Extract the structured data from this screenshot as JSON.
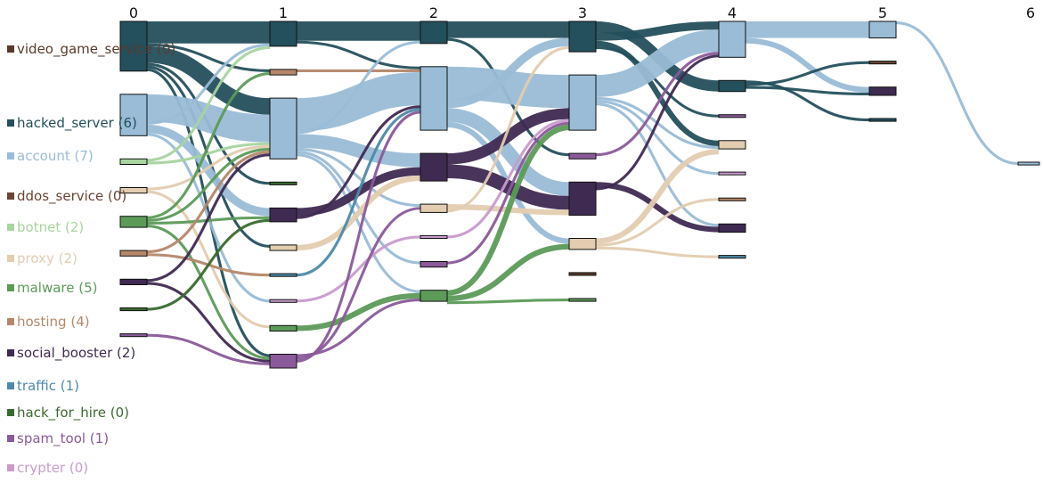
{
  "chart_data": {
    "type": "sankey",
    "steps": [
      "0",
      "1",
      "2",
      "3",
      "4",
      "5",
      "6"
    ],
    "categories": [
      {
        "key": "video_game_service",
        "color": "#5a3a2c"
      },
      {
        "key": "hacked_server",
        "color": "#244f5c"
      },
      {
        "key": "account",
        "color": "#9abcd6"
      },
      {
        "key": "ddos_service",
        "color": "#6b4434"
      },
      {
        "key": "botnet",
        "color": "#a8d4a0"
      },
      {
        "key": "proxy",
        "color": "#e3ccb0"
      },
      {
        "key": "malware",
        "color": "#5c9a58"
      },
      {
        "key": "hosting",
        "color": "#b4876a"
      },
      {
        "key": "social_booster",
        "color": "#3f2a52"
      },
      {
        "key": "traffic",
        "color": "#4e8aa8"
      },
      {
        "key": "hack_for_hire",
        "color": "#3a6a30"
      },
      {
        "key": "spam_tool",
        "color": "#8a5a9a"
      },
      {
        "key": "crypter",
        "color": "#c89bcc"
      }
    ],
    "legend": [
      {
        "label": "video_game_service (0)",
        "category": "video_game_service"
      },
      {
        "label": "hacked_server (6)",
        "category": "hacked_server"
      },
      {
        "label": "account (7)",
        "category": "account"
      },
      {
        "label": "ddos_service (0)",
        "category": "ddos_service"
      },
      {
        "label": "botnet (2)",
        "category": "botnet"
      },
      {
        "label": "proxy (2)",
        "category": "proxy"
      },
      {
        "label": "malware (5)",
        "category": "malware"
      },
      {
        "label": "hosting (4)",
        "category": "hosting"
      },
      {
        "label": "social_booster (2)",
        "category": "social_booster"
      },
      {
        "label": "traffic (1)",
        "category": "traffic"
      },
      {
        "label": "hack_for_hire (0)",
        "category": "hack_for_hire"
      },
      {
        "label": "spam_tool (1)",
        "category": "spam_tool"
      },
      {
        "label": "crypter (0)",
        "category": "crypter"
      }
    ],
    "nodes": [
      {
        "id": "s0_hacked_server",
        "step": 0,
        "category": "hacked_server",
        "value": 18
      },
      {
        "id": "s0_account",
        "step": 0,
        "category": "account",
        "value": 15
      },
      {
        "id": "s0_botnet",
        "step": 0,
        "category": "botnet",
        "value": 2
      },
      {
        "id": "s0_proxy",
        "step": 0,
        "category": "proxy",
        "value": 2
      },
      {
        "id": "s0_malware",
        "step": 0,
        "category": "malware",
        "value": 4
      },
      {
        "id": "s0_hosting",
        "step": 0,
        "category": "hosting",
        "value": 2
      },
      {
        "id": "s0_social_booster",
        "step": 0,
        "category": "social_booster",
        "value": 2
      },
      {
        "id": "s0_hack_for_hire",
        "step": 0,
        "category": "hack_for_hire",
        "value": 1
      },
      {
        "id": "s0_spam_tool",
        "step": 0,
        "category": "spam_tool",
        "value": 1
      },
      {
        "id": "s1_hacked_server",
        "step": 1,
        "category": "hacked_server",
        "value": 9
      },
      {
        "id": "s1_hosting",
        "step": 1,
        "category": "hosting",
        "value": 2
      },
      {
        "id": "s1_account",
        "step": 1,
        "category": "account",
        "value": 22
      },
      {
        "id": "s1_hack_for_hire",
        "step": 1,
        "category": "hack_for_hire",
        "value": 1
      },
      {
        "id": "s1_social_booster",
        "step": 1,
        "category": "social_booster",
        "value": 5
      },
      {
        "id": "s1_proxy",
        "step": 1,
        "category": "proxy",
        "value": 2
      },
      {
        "id": "s1_traffic",
        "step": 1,
        "category": "traffic",
        "value": 1
      },
      {
        "id": "s1_crypter",
        "step": 1,
        "category": "crypter",
        "value": 1
      },
      {
        "id": "s1_malware",
        "step": 1,
        "category": "malware",
        "value": 2
      },
      {
        "id": "s1_spam_tool",
        "step": 1,
        "category": "spam_tool",
        "value": 5
      },
      {
        "id": "s2_hacked_server",
        "step": 2,
        "category": "hacked_server",
        "value": 8
      },
      {
        "id": "s2_account",
        "step": 2,
        "category": "account",
        "value": 23
      },
      {
        "id": "s2_social_booster",
        "step": 2,
        "category": "social_booster",
        "value": 10
      },
      {
        "id": "s2_proxy",
        "step": 2,
        "category": "proxy",
        "value": 3
      },
      {
        "id": "s2_crypter",
        "step": 2,
        "category": "crypter",
        "value": 1
      },
      {
        "id": "s2_spam_tool",
        "step": 2,
        "category": "spam_tool",
        "value": 2
      },
      {
        "id": "s2_malware",
        "step": 2,
        "category": "malware",
        "value": 4
      },
      {
        "id": "s3_hacked_server",
        "step": 3,
        "category": "hacked_server",
        "value": 11
      },
      {
        "id": "s3_account",
        "step": 3,
        "category": "account",
        "value": 20
      },
      {
        "id": "s3_spam_tool",
        "step": 3,
        "category": "spam_tool",
        "value": 2
      },
      {
        "id": "s3_social_booster",
        "step": 3,
        "category": "social_booster",
        "value": 12
      },
      {
        "id": "s3_proxy",
        "step": 3,
        "category": "proxy",
        "value": 4
      },
      {
        "id": "s3_video_game_service",
        "step": 3,
        "category": "video_game_service",
        "value": 1
      },
      {
        "id": "s3_malware",
        "step": 3,
        "category": "malware",
        "value": 1
      },
      {
        "id": "s4_account",
        "step": 4,
        "category": "account",
        "value": 13
      },
      {
        "id": "s4_hacked_server",
        "step": 4,
        "category": "hacked_server",
        "value": 4
      },
      {
        "id": "s4_spam_tool",
        "step": 4,
        "category": "spam_tool",
        "value": 1
      },
      {
        "id": "s4_proxy",
        "step": 4,
        "category": "proxy",
        "value": 3
      },
      {
        "id": "s4_crypter",
        "step": 4,
        "category": "crypter",
        "value": 1
      },
      {
        "id": "s4_hosting",
        "step": 4,
        "category": "hosting",
        "value": 1
      },
      {
        "id": "s4_social_booster",
        "step": 4,
        "category": "social_booster",
        "value": 3
      },
      {
        "id": "s4_traffic",
        "step": 4,
        "category": "traffic",
        "value": 1
      },
      {
        "id": "s5_account",
        "step": 5,
        "category": "account",
        "value": 6
      },
      {
        "id": "s5_ddos_service",
        "step": 5,
        "category": "ddos_service",
        "value": 1
      },
      {
        "id": "s5_social_booster",
        "step": 5,
        "category": "social_booster",
        "value": 3
      },
      {
        "id": "s5_hacked_server",
        "step": 5,
        "category": "hacked_server",
        "value": 1
      },
      {
        "id": "s6_account",
        "step": 6,
        "category": "account",
        "value": 1
      }
    ],
    "links": [
      {
        "source": "s0_hacked_server",
        "target": "s1_hacked_server",
        "value": 8
      },
      {
        "source": "s0_hacked_server",
        "target": "s1_hosting",
        "value": 1
      },
      {
        "source": "s0_hacked_server",
        "target": "s1_account",
        "value": 6
      },
      {
        "source": "s0_hacked_server",
        "target": "s1_hack_for_hire",
        "value": 1
      },
      {
        "source": "s0_hacked_server",
        "target": "s1_proxy",
        "value": 1
      },
      {
        "source": "s0_hacked_server",
        "target": "s1_spam_tool",
        "value": 1
      },
      {
        "source": "s0_account",
        "target": "s1_account",
        "value": 10
      },
      {
        "source": "s0_account",
        "target": "s1_hacked_server",
        "value": 1
      },
      {
        "source": "s0_account",
        "target": "s1_social_booster",
        "value": 3
      },
      {
        "source": "s0_account",
        "target": "s1_crypter",
        "value": 1
      },
      {
        "source": "s0_botnet",
        "target": "s1_hacked_server",
        "value": 1
      },
      {
        "source": "s0_botnet",
        "target": "s1_account",
        "value": 1
      },
      {
        "source": "s0_proxy",
        "target": "s1_account",
        "value": 1
      },
      {
        "source": "s0_proxy",
        "target": "s1_malware",
        "value": 1
      },
      {
        "source": "s0_malware",
        "target": "s1_hosting",
        "value": 1
      },
      {
        "source": "s0_malware",
        "target": "s1_account",
        "value": 1
      },
      {
        "source": "s0_malware",
        "target": "s1_social_booster",
        "value": 1
      },
      {
        "source": "s0_malware",
        "target": "s1_spam_tool",
        "value": 1
      },
      {
        "source": "s0_hosting",
        "target": "s1_account",
        "value": 1
      },
      {
        "source": "s0_hosting",
        "target": "s1_traffic",
        "value": 1
      },
      {
        "source": "s0_social_booster",
        "target": "s1_account",
        "value": 1
      },
      {
        "source": "s0_social_booster",
        "target": "s1_spam_tool",
        "value": 1
      },
      {
        "source": "s0_hack_for_hire",
        "target": "s1_social_booster",
        "value": 1
      },
      {
        "source": "s0_spam_tool",
        "target": "s1_spam_tool",
        "value": 1
      },
      {
        "source": "s1_hacked_server",
        "target": "s2_hacked_server",
        "value": 7
      },
      {
        "source": "s1_hacked_server",
        "target": "s2_account",
        "value": 1
      },
      {
        "source": "s1_hosting",
        "target": "s2_account",
        "value": 1
      },
      {
        "source": "s1_account",
        "target": "s2_account",
        "value": 12
      },
      {
        "source": "s1_account",
        "target": "s2_hacked_server",
        "value": 1
      },
      {
        "source": "s1_account",
        "target": "s2_social_booster",
        "value": 5
      },
      {
        "source": "s1_account",
        "target": "s2_proxy",
        "value": 1
      },
      {
        "source": "s1_account",
        "target": "s2_spam_tool",
        "value": 1
      },
      {
        "source": "s1_account",
        "target": "s2_malware",
        "value": 1
      },
      {
        "source": "s1_social_booster",
        "target": "s2_social_booster",
        "value": 3
      },
      {
        "source": "s1_social_booster",
        "target": "s2_account",
        "value": 1
      },
      {
        "source": "s1_proxy",
        "target": "s2_social_booster",
        "value": 2
      },
      {
        "source": "s1_traffic",
        "target": "s2_account",
        "value": 1
      },
      {
        "source": "s1_crypter",
        "target": "s2_crypter",
        "value": 1
      },
      {
        "source": "s1_malware",
        "target": "s2_malware",
        "value": 2
      },
      {
        "source": "s1_spam_tool",
        "target": "s2_malware",
        "value": 1
      },
      {
        "source": "s1_spam_tool",
        "target": "s2_proxy",
        "value": 1
      },
      {
        "source": "s1_spam_tool",
        "target": "s2_account",
        "value": 1
      },
      {
        "source": "s2_hacked_server",
        "target": "s3_hacked_server",
        "value": 6
      },
      {
        "source": "s2_hacked_server",
        "target": "s3_spam_tool",
        "value": 1
      },
      {
        "source": "s2_account",
        "target": "s3_account",
        "value": 12
      },
      {
        "source": "s2_account",
        "target": "s3_hacked_server",
        "value": 3
      },
      {
        "source": "s2_account",
        "target": "s3_social_booster",
        "value": 5
      },
      {
        "source": "s2_account",
        "target": "s3_proxy",
        "value": 2
      },
      {
        "source": "s2_social_booster",
        "target": "s3_account",
        "value": 4
      },
      {
        "source": "s2_social_booster",
        "target": "s3_social_booster",
        "value": 5
      },
      {
        "source": "s2_proxy",
        "target": "s3_social_booster",
        "value": 2
      },
      {
        "source": "s2_proxy",
        "target": "s3_hacked_server",
        "value": 1
      },
      {
        "source": "s2_crypter",
        "target": "s3_account",
        "value": 1
      },
      {
        "source": "s2_spam_tool",
        "target": "s3_account",
        "value": 1
      },
      {
        "source": "s2_malware",
        "target": "s3_account",
        "value": 2
      },
      {
        "source": "s2_malware",
        "target": "s3_proxy",
        "value": 2
      },
      {
        "source": "s2_malware",
        "target": "s3_malware",
        "value": 1
      },
      {
        "source": "s3_hacked_server",
        "target": "s4_hacked_server",
        "value": 4
      },
      {
        "source": "s3_hacked_server",
        "target": "s4_account",
        "value": 3
      },
      {
        "source": "s3_hacked_server",
        "target": "s4_proxy",
        "value": 2
      },
      {
        "source": "s3_hacked_server",
        "target": "s4_spam_tool",
        "value": 1
      },
      {
        "source": "s3_account",
        "target": "s4_account",
        "value": 8
      },
      {
        "source": "s3_account",
        "target": "s4_proxy",
        "value": 1
      },
      {
        "source": "s3_account",
        "target": "s4_crypter",
        "value": 1
      },
      {
        "source": "s3_account",
        "target": "s4_social_booster",
        "value": 1
      },
      {
        "source": "s3_spam_tool",
        "target": "s4_account",
        "value": 1
      },
      {
        "source": "s3_social_booster",
        "target": "s4_social_booster",
        "value": 2
      },
      {
        "source": "s3_social_booster",
        "target": "s4_account",
        "value": 1
      },
      {
        "source": "s3_proxy",
        "target": "s4_proxy",
        "value": 2
      },
      {
        "source": "s3_proxy",
        "target": "s4_hosting",
        "value": 1
      },
      {
        "source": "s3_proxy",
        "target": "s4_traffic",
        "value": 1
      },
      {
        "source": "s4_account",
        "target": "s5_account",
        "value": 6
      },
      {
        "source": "s4_account",
        "target": "s5_social_booster",
        "value": 2
      },
      {
        "source": "s4_hacked_server",
        "target": "s5_hacked_server",
        "value": 1
      },
      {
        "source": "s4_hacked_server",
        "target": "s5_ddos_service",
        "value": 1
      },
      {
        "source": "s4_hacked_server",
        "target": "s5_social_booster",
        "value": 1
      },
      {
        "source": "s5_account",
        "target": "s6_account",
        "value": 1
      }
    ]
  }
}
